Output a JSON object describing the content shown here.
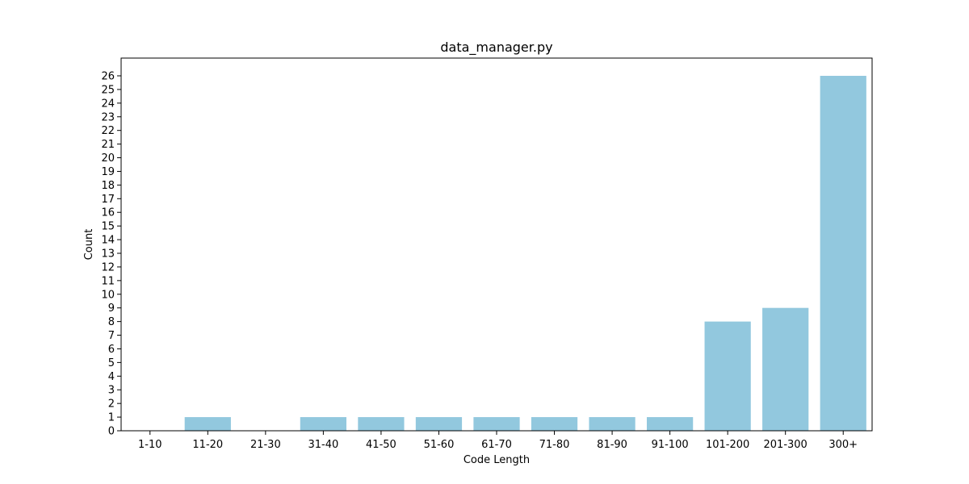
{
  "chart_data": {
    "type": "bar",
    "title": "data_manager.py",
    "xlabel": "Code Length",
    "ylabel": "Count",
    "categories": [
      "1-10",
      "11-20",
      "21-30",
      "31-40",
      "41-50",
      "51-60",
      "61-70",
      "71-80",
      "81-90",
      "91-100",
      "101-200",
      "201-300",
      "300+"
    ],
    "values": [
      0,
      1,
      0,
      1,
      1,
      1,
      1,
      1,
      1,
      1,
      8,
      9,
      26
    ],
    "ylim": [
      0,
      27.3
    ],
    "yticks": [
      0,
      1,
      2,
      3,
      4,
      5,
      6,
      7,
      8,
      9,
      10,
      11,
      12,
      13,
      14,
      15,
      16,
      17,
      18,
      19,
      20,
      21,
      22,
      23,
      24,
      25,
      26
    ],
    "grid": false,
    "bar_color": "#92c8de"
  }
}
